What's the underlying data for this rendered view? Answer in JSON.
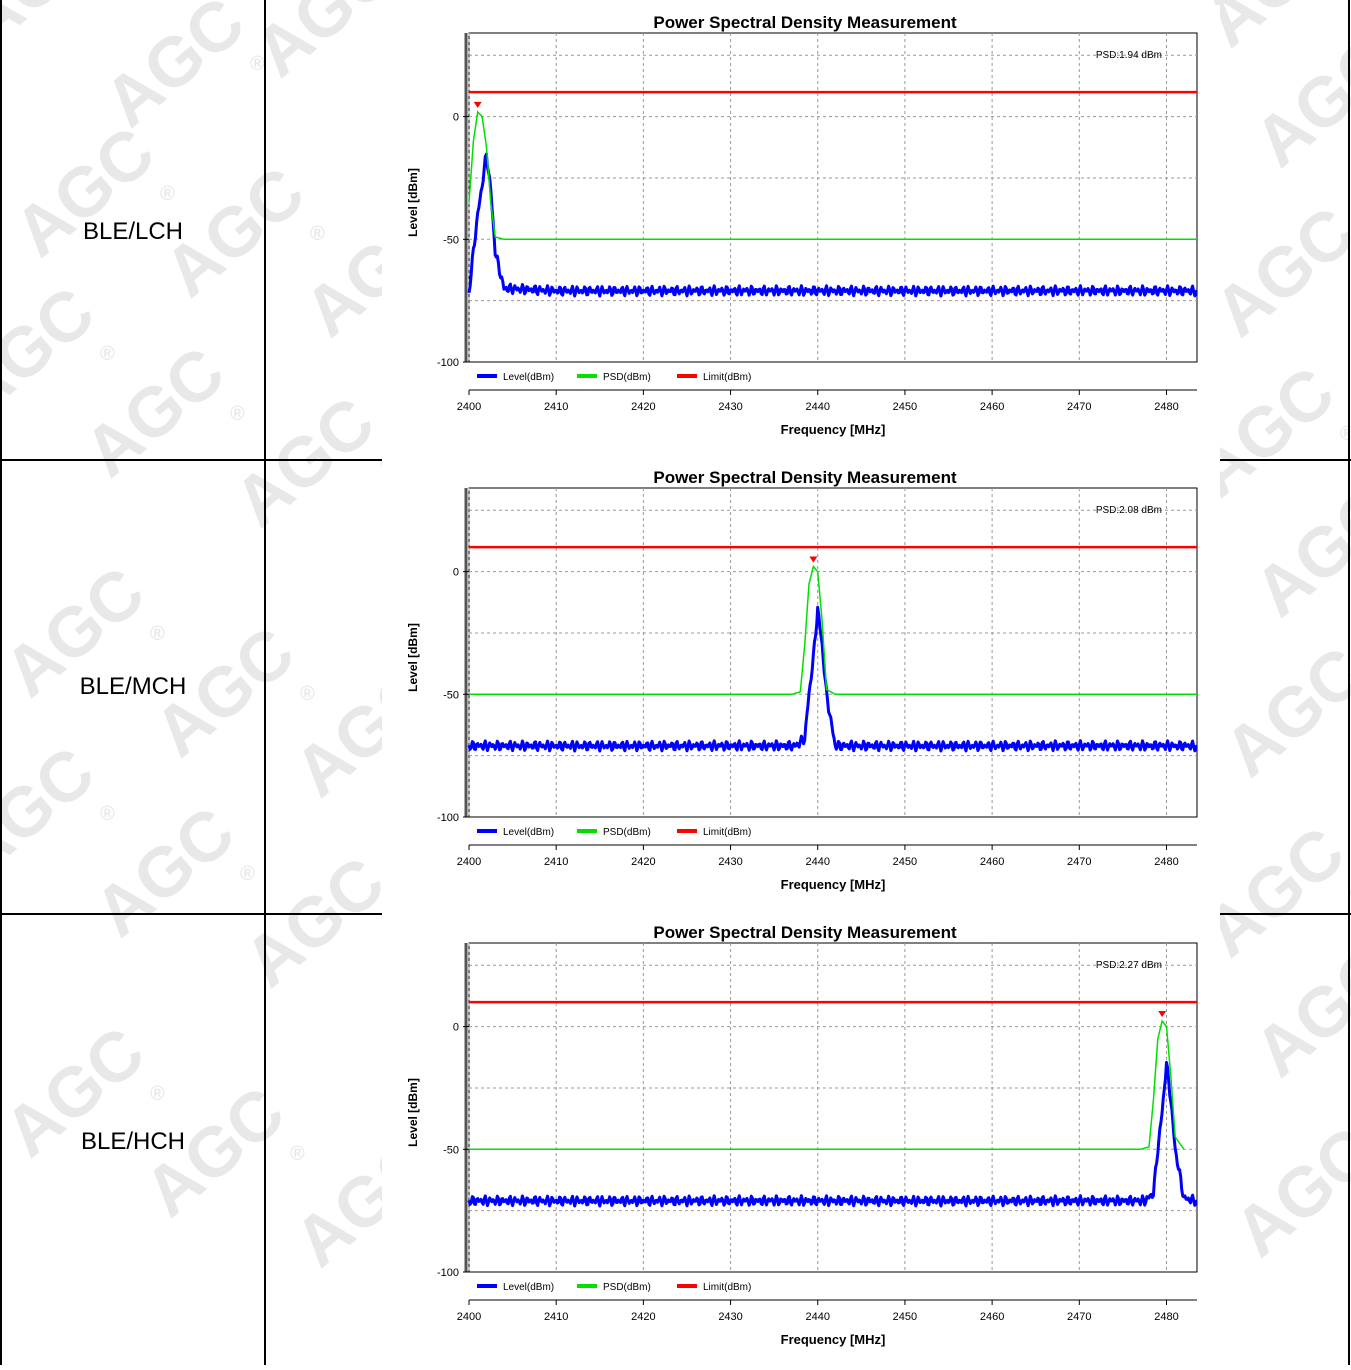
{
  "rows": [
    {
      "label": "BLE/LCH"
    },
    {
      "label": "BLE/MCH"
    },
    {
      "label": "BLE/HCH"
    }
  ],
  "colors": {
    "level": "#0000ff",
    "psd": "#00e000",
    "limit": "#ff0000",
    "marker": "#ff0000"
  },
  "watermark": {
    "text": "AGC",
    "mark": "®"
  },
  "chart_data": [
    {
      "type": "line",
      "title": "Power Spectral Density Measurement",
      "xlabel": "Frequency [MHz]",
      "ylabel": "Level [dBm]",
      "xlim": [
        2400,
        2483.5
      ],
      "ylim": [
        -100,
        30
      ],
      "xticks": [
        "2400",
        "2410",
        "2420",
        "2430",
        "2440",
        "2450",
        "2460",
        "2470",
        "2480"
      ],
      "yticks": [
        "0",
        "-50",
        "-100"
      ],
      "grid": true,
      "legend_position": "bottom-left",
      "annotation": "PSD:1.94 dBm",
      "peak": {
        "x": 2401.0,
        "y": 1.94
      },
      "series": [
        {
          "name": "Level(dBm)",
          "color": "#0000ff",
          "x": [
            2400,
            2400.5,
            2401.0,
            2401.5,
            2402.0,
            2402.5,
            2403.0,
            2404.0,
            2410,
            2420,
            2430,
            2440,
            2450,
            2460,
            2470,
            2480,
            2483.5
          ],
          "y": [
            -72,
            -55,
            -40,
            -28,
            -15,
            -30,
            -55,
            -70,
            -71,
            -71,
            -71,
            -71,
            -71,
            -71,
            -71,
            -71,
            -71
          ]
        },
        {
          "name": "PSD(dBm)",
          "color": "#00e000",
          "x": [
            2400,
            2400.5,
            2401.0,
            2401.5,
            2402.0,
            2402.5,
            2403.0,
            2404.0,
            2483.5
          ],
          "y": [
            -35,
            -10,
            1.94,
            0,
            -12,
            -35,
            -49,
            -50,
            -50
          ]
        },
        {
          "name": "Limit(dBm)",
          "color": "#ff0000",
          "x": [
            2400,
            2483.5
          ],
          "y": [
            10,
            10
          ]
        }
      ]
    },
    {
      "type": "line",
      "title": "Power Spectral Density Measurement",
      "xlabel": "Frequency [MHz]",
      "ylabel": "Level [dBm]",
      "xlim": [
        2400,
        2483.5
      ],
      "ylim": [
        -100,
        30
      ],
      "xticks": [
        "2400",
        "2410",
        "2420",
        "2430",
        "2440",
        "2450",
        "2460",
        "2470",
        "2480"
      ],
      "yticks": [
        "0",
        "-50",
        "-100"
      ],
      "grid": true,
      "legend_position": "bottom-left",
      "annotation": "PSD:2.08 dBm",
      "peak": {
        "x": 2439.5,
        "y": 2.08
      },
      "series": [
        {
          "name": "Level(dBm)",
          "color": "#0000ff",
          "x": [
            2400,
            2437.5,
            2438.5,
            2439.0,
            2439.5,
            2440.0,
            2440.5,
            2441.0,
            2442.0,
            2483.5
          ],
          "y": [
            -71,
            -71,
            -68,
            -50,
            -35,
            -15,
            -30,
            -50,
            -71,
            -71
          ]
        },
        {
          "name": "PSD(dBm)",
          "color": "#00e000",
          "x": [
            2400,
            2437.0,
            2438.0,
            2438.5,
            2439.0,
            2439.5,
            2440.0,
            2440.5,
            2441.0,
            2442.0,
            2483.5
          ],
          "y": [
            -50,
            -50,
            -49,
            -30,
            -5,
            2.08,
            0,
            -20,
            -48,
            -50,
            -50
          ]
        },
        {
          "name": "Limit(dBm)",
          "color": "#ff0000",
          "x": [
            2400,
            2483.5
          ],
          "y": [
            10,
            10
          ]
        }
      ]
    },
    {
      "type": "line",
      "title": "Power Spectral Density Measurement",
      "xlabel": "Frequency [MHz]",
      "ylabel": "Level [dBm]",
      "xlim": [
        2400,
        2483.5
      ],
      "ylim": [
        -100,
        30
      ],
      "xticks": [
        "2400",
        "2410",
        "2420",
        "2430",
        "2440",
        "2450",
        "2460",
        "2470",
        "2480"
      ],
      "yticks": [
        "0",
        "-50",
        "-100"
      ],
      "grid": true,
      "legend_position": "bottom-left",
      "annotation": "PSD:2.27 dBm",
      "peak": {
        "x": 2479.5,
        "y": 2.27
      },
      "series": [
        {
          "name": "Level(dBm)",
          "color": "#0000ff",
          "x": [
            2400,
            2477.5,
            2478.5,
            2479.0,
            2479.5,
            2480.0,
            2480.5,
            2481.0,
            2482.0,
            2483.5
          ],
          "y": [
            -71,
            -71,
            -68,
            -50,
            -35,
            -15,
            -30,
            -50,
            -70,
            -71
          ]
        },
        {
          "name": "PSD(dBm)",
          "color": "#00e000",
          "x": [
            2400,
            2477.0,
            2478.0,
            2478.5,
            2479.0,
            2479.5,
            2480.0,
            2480.5,
            2481.0,
            2482.0
          ],
          "y": [
            -50,
            -50,
            -49,
            -30,
            -5,
            2.27,
            0,
            -20,
            -45,
            -50
          ]
        },
        {
          "name": "Limit(dBm)",
          "color": "#ff0000",
          "x": [
            2400,
            2483.5
          ],
          "y": [
            10,
            10
          ]
        }
      ]
    }
  ]
}
